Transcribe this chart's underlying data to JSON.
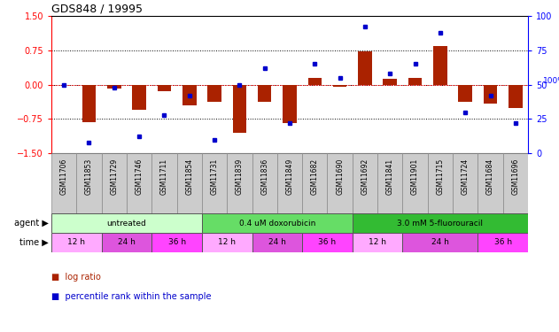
{
  "title": "GDS848 / 19995",
  "samples": [
    "GSM11706",
    "GSM11853",
    "GSM11729",
    "GSM11746",
    "GSM11711",
    "GSM11854",
    "GSM11731",
    "GSM11839",
    "GSM11836",
    "GSM11849",
    "GSM11682",
    "GSM11690",
    "GSM11692",
    "GSM11841",
    "GSM11901",
    "GSM11715",
    "GSM11724",
    "GSM11684",
    "GSM11696"
  ],
  "log_ratio": [
    0.0,
    -0.82,
    -0.08,
    -0.55,
    -0.15,
    -0.45,
    -0.38,
    -1.05,
    -0.38,
    -0.85,
    0.15,
    -0.05,
    0.72,
    0.12,
    0.15,
    0.85,
    -0.38,
    -0.42,
    -0.52
  ],
  "percentile": [
    50,
    8,
    48,
    12,
    28,
    42,
    10,
    50,
    62,
    22,
    65,
    55,
    92,
    58,
    65,
    88,
    30,
    42,
    22
  ],
  "agents": [
    {
      "label": "untreated",
      "start": 0,
      "end": 6,
      "color": "#ccffcc"
    },
    {
      "label": "0.4 uM doxorubicin",
      "start": 6,
      "end": 12,
      "color": "#66dd66"
    },
    {
      "label": "3.0 mM 5-fluorouracil",
      "start": 12,
      "end": 19,
      "color": "#33bb33"
    }
  ],
  "times": [
    {
      "label": "12 h",
      "start": 0,
      "end": 2,
      "color": "#ffaaff"
    },
    {
      "label": "24 h",
      "start": 2,
      "end": 4,
      "color": "#dd55dd"
    },
    {
      "label": "36 h",
      "start": 4,
      "end": 6,
      "color": "#ff44ff"
    },
    {
      "label": "12 h",
      "start": 6,
      "end": 8,
      "color": "#ffaaff"
    },
    {
      "label": "24 h",
      "start": 8,
      "end": 10,
      "color": "#dd55dd"
    },
    {
      "label": "36 h",
      "start": 10,
      "end": 12,
      "color": "#ff44ff"
    },
    {
      "label": "12 h",
      "start": 12,
      "end": 14,
      "color": "#ffaaff"
    },
    {
      "label": "24 h",
      "start": 14,
      "end": 17,
      "color": "#dd55dd"
    },
    {
      "label": "36 h",
      "start": 17,
      "end": 19,
      "color": "#ff44ff"
    }
  ],
  "ylim": [
    -1.5,
    1.5
  ],
  "yticks_left": [
    -1.5,
    -0.75,
    0.0,
    0.75,
    1.5
  ],
  "yticks_right": [
    0,
    25,
    50,
    75,
    100
  ],
  "bar_color": "#aa2200",
  "dot_color": "#0000cc",
  "label_bg": "#cccccc",
  "background_color": "#ffffff"
}
